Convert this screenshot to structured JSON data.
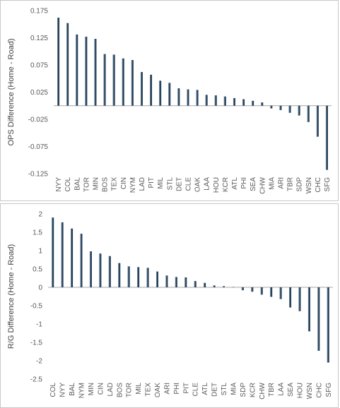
{
  "bar_color": "#243F58",
  "bar_highlight": "#8FA9C0",
  "axis_color": "#A6A6A6",
  "chart_data": [
    {
      "type": "bar",
      "ylabel": "OPS Difference (Home - Road)",
      "ylim": [
        -0.125,
        0.175
      ],
      "yticks": [
        0.175,
        0.125,
        0.075,
        0.025,
        -0.025,
        -0.075,
        -0.125
      ],
      "ytick_labels": [
        "0.175",
        "0.125",
        "0.075",
        "0.025",
        "-0.025",
        "-0.075",
        "-0.125"
      ],
      "grid": false,
      "categories": [
        "NYY",
        "COL",
        "BAL",
        "TOR",
        "MIN",
        "BOS",
        "TEX",
        "CIN",
        "NYM",
        "LAD",
        "PIT",
        "MIL",
        "STL",
        "DET",
        "CLE",
        "OAK",
        "LAA",
        "HOU",
        "KCR",
        "ATL",
        "PHI",
        "SEA",
        "CHW",
        "MIA",
        "ARI",
        "TBR",
        "SDP",
        "WSN",
        "CHC",
        "SFG"
      ],
      "values": [
        0.162,
        0.152,
        0.131,
        0.127,
        0.123,
        0.095,
        0.094,
        0.087,
        0.084,
        0.062,
        0.057,
        0.046,
        0.042,
        0.032,
        0.03,
        0.029,
        0.02,
        0.019,
        0.017,
        0.014,
        0.012,
        0.009,
        0.006,
        -0.005,
        -0.008,
        -0.013,
        -0.018,
        -0.03,
        -0.057,
        -0.118
      ]
    },
    {
      "type": "bar",
      "ylabel": "R/G Difference (Home - Road)",
      "ylim": [
        -2.5,
        2.0
      ],
      "yticks": [
        2,
        1.5,
        1,
        0.5,
        0,
        -0.5,
        -1,
        -1.5,
        -2,
        -2.5
      ],
      "ytick_labels": [
        "2",
        "1.5",
        "1",
        "0.5",
        "0",
        "-0.5",
        "-1",
        "-1.5",
        "-2",
        "-2.5"
      ],
      "grid": false,
      "categories": [
        "COL",
        "NYY",
        "BAL",
        "NYM",
        "MIN",
        "CIN",
        "LAD",
        "BOS",
        "TOR",
        "MIL",
        "TEX",
        "OAK",
        "ARI",
        "PHI",
        "PIT",
        "CLE",
        "ATL",
        "DET",
        "STL",
        "MIA",
        "SDP",
        "KCR",
        "CHW",
        "TBR",
        "LAA",
        "SEA",
        "HOU",
        "WSN",
        "CHC",
        "SFG"
      ],
      "values": [
        1.9,
        1.77,
        1.6,
        1.46,
        0.98,
        0.92,
        0.85,
        0.66,
        0.57,
        0.55,
        0.53,
        0.43,
        0.32,
        0.28,
        0.27,
        0.17,
        0.12,
        0.05,
        0.03,
        0.01,
        -0.08,
        -0.12,
        -0.2,
        -0.26,
        -0.32,
        -0.55,
        -0.65,
        -1.2,
        -1.73,
        -2.05
      ]
    }
  ]
}
